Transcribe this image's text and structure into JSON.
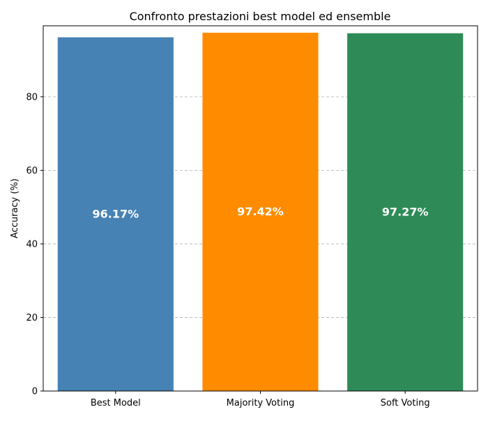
{
  "chart_data": {
    "type": "bar",
    "title": "Confronto prestazioni best model ed ensemble",
    "xlabel": "",
    "ylabel": "Accuracy (%)",
    "categories": [
      "Best Model",
      "Majority Voting",
      "Soft Voting"
    ],
    "values": [
      96.17,
      97.42,
      97.27
    ],
    "value_labels": [
      "96.17%",
      "97.42%",
      "97.27%"
    ],
    "colors": [
      "#4682b4",
      "#ff8c00",
      "#2e8b57"
    ],
    "ylim": [
      0,
      99.3
    ],
    "yticks": [
      0,
      20,
      40,
      60,
      80
    ],
    "ytick_labels": [
      "0",
      "20",
      "40",
      "60",
      "80"
    ],
    "grid": "y",
    "legend": "none"
  }
}
